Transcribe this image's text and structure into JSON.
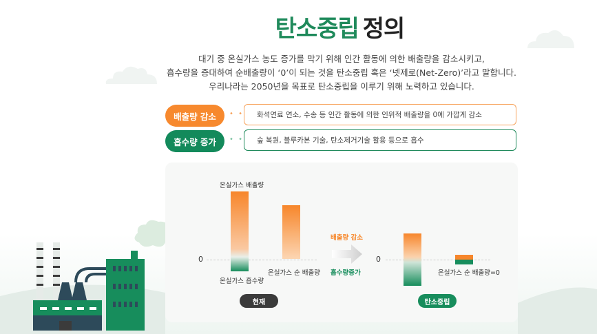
{
  "title": {
    "green": "탄소중립",
    "dark": "정의"
  },
  "description": [
    "대기 중 온실가스 농도 증가를 막기 위해 인간 활동에 의한 배출량을 감소시키고,",
    "흡수량을 증대하여 순배출량이 ‘0’이 되는 것을 탄소중립 혹은 ‘넷제로(Net-Zero)’라고 말합니다.",
    "우리나라는 2050년을 목표로 탄소중립을 이루기 위해 노력하고 있습니다."
  ],
  "rows": [
    {
      "pill": "배출량 감소",
      "dots": "• • •",
      "text": "화석연료 연소, 수송 등 인간 활동에 의한 인위적 배출량을 0에 가깝게 감소"
    },
    {
      "pill": "흡수량 증가",
      "dots": "• • •",
      "text": "숲 복원, 블루카본 기술, 탄소제거기술 활용 등으로 흡수"
    }
  ],
  "diagram": {
    "left": {
      "zero": "0",
      "emission_label": "온실가스 배출량",
      "absorption_label": "온실가스 흡수량",
      "net_label": "온실가스 순 배출량",
      "tag": "현재"
    },
    "middle": {
      "top": "배출량 감소",
      "bottom": "흡수량증가"
    },
    "right": {
      "zero": "0",
      "net_label": "온실가스 순 배출량=0",
      "tag": "탄소중립"
    }
  },
  "colors": {
    "green": "#1f8a5b",
    "orange": "#f7892e",
    "dark": "#3b3b3b"
  }
}
